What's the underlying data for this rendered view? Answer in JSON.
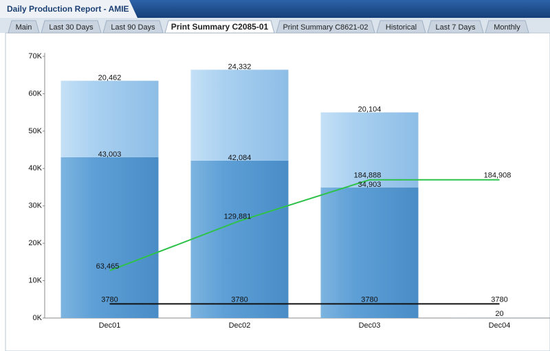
{
  "header": {
    "title": "Daily Production Report - AMIE"
  },
  "tabs": [
    "Main",
    "Last 30 Days",
    "Last 90 Days",
    "Print Summary C2085-01",
    "Print Summary C8621-02",
    "Historical",
    "Last 7 Days",
    "Monthly"
  ],
  "active_tab": 3,
  "chart_data": {
    "type": "bar",
    "stacked": true,
    "categories": [
      "Dec01",
      "Dec02",
      "Dec03",
      "Dec04"
    ],
    "ylim": [
      0,
      70000
    ],
    "yticks": [
      {
        "value": 0,
        "label": "0K"
      },
      {
        "value": 10000,
        "label": "10K"
      },
      {
        "value": 20000,
        "label": "20K"
      },
      {
        "value": 30000,
        "label": "30K"
      },
      {
        "value": 40000,
        "label": "40K"
      },
      {
        "value": 50000,
        "label": "50K"
      },
      {
        "value": 60000,
        "label": "60K"
      },
      {
        "value": 70000,
        "label": "70K"
      }
    ],
    "y2lim": [
      0,
      350000
    ],
    "series": [
      {
        "type": "bar",
        "color": "#5d9fd6",
        "values": [
          43003,
          42084,
          34903,
          20
        ],
        "value_labels": [
          "43,003",
          "42,084",
          "34,903",
          "20"
        ]
      },
      {
        "type": "bar",
        "color": "#a9d0f0",
        "values": [
          20462,
          24332,
          20104,
          null
        ],
        "value_labels": [
          "20,462",
          "24,332",
          "20,104",
          null
        ]
      },
      {
        "type": "line",
        "color": "#2fc24a",
        "axis": "y2",
        "values": [
          63465,
          129881,
          184888,
          184908
        ],
        "value_labels": [
          "63,465",
          "129,881",
          "184,888",
          "184,908"
        ]
      },
      {
        "type": "line",
        "color": "#111111",
        "values": [
          3780,
          3780,
          3780,
          3780
        ]
      }
    ]
  }
}
